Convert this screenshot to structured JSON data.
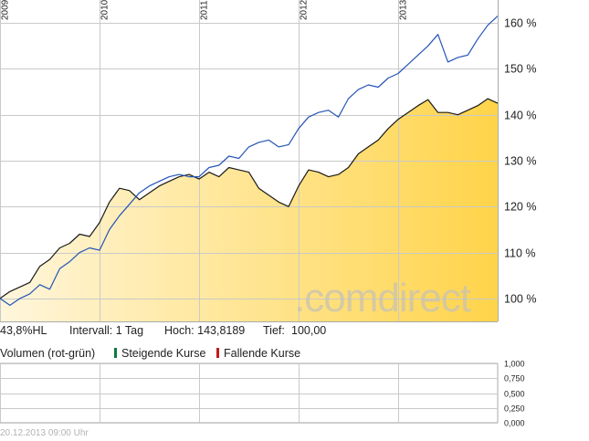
{
  "chart_data": [
    {
      "type": "area",
      "title": "",
      "xlabel": "",
      "ylabel": "",
      "x_axis_labels": [
        "2009",
        "2010",
        "2011",
        "2012",
        "2013"
      ],
      "y_axis_labels": [
        "160 %",
        "150 %",
        "140 %",
        "130 %",
        "120 %",
        "110 %",
        "100 %"
      ],
      "ylim": [
        95,
        165
      ],
      "grid": true,
      "series": [
        {
          "style": "area",
          "color": "#1a1a1a",
          "fill": [
            "#fff6dc",
            "#ffd44a"
          ],
          "x": [
            0.0,
            0.1,
            0.2,
            0.3,
            0.4,
            0.5,
            0.6,
            0.7,
            0.8,
            0.9,
            1.0,
            1.1,
            1.2,
            1.3,
            1.4,
            1.5,
            1.6,
            1.7,
            1.8,
            1.9,
            2.0,
            2.1,
            2.2,
            2.3,
            2.4,
            2.5,
            2.6,
            2.7,
            2.8,
            2.9,
            3.0,
            3.1,
            3.2,
            3.3,
            3.4,
            3.5,
            3.6,
            3.7,
            3.8,
            3.9,
            4.0,
            4.1,
            4.2,
            4.3,
            4.4,
            4.5,
            4.6,
            4.7,
            4.8,
            4.9,
            5.0
          ],
          "values": [
            100,
            101.5,
            102.5,
            103.5,
            107,
            108.5,
            111,
            112,
            114,
            113.5,
            116.5,
            121,
            124,
            123.5,
            121.5,
            123,
            124.5,
            125.5,
            126.5,
            127,
            126,
            127.5,
            126.5,
            128.5,
            128,
            127.5,
            124,
            122.5,
            121,
            120,
            124.5,
            128,
            127.5,
            126.5,
            127,
            128.5,
            131.5,
            133,
            134.5,
            137,
            139,
            140.5,
            142,
            143.3,
            140.5,
            140.5,
            140,
            141,
            142,
            143.5,
            142.5
          ]
        },
        {
          "style": "line",
          "color": "#2454b8",
          "x": [
            0.0,
            0.1,
            0.2,
            0.3,
            0.4,
            0.5,
            0.6,
            0.7,
            0.8,
            0.9,
            1.0,
            1.1,
            1.2,
            1.3,
            1.4,
            1.5,
            1.6,
            1.7,
            1.8,
            1.9,
            2.0,
            2.1,
            2.2,
            2.3,
            2.4,
            2.5,
            2.6,
            2.7,
            2.8,
            2.9,
            3.0,
            3.1,
            3.2,
            3.3,
            3.4,
            3.5,
            3.6,
            3.7,
            3.8,
            3.9,
            4.0,
            4.1,
            4.2,
            4.3,
            4.4,
            4.5,
            4.6,
            4.7,
            4.8,
            4.9,
            5.0
          ],
          "values": [
            100,
            98.5,
            100,
            101,
            103,
            102,
            106.5,
            108,
            110,
            111,
            110.5,
            115,
            118,
            120.5,
            123,
            124.5,
            125.5,
            126.5,
            127,
            126.5,
            126.5,
            128.5,
            129,
            131,
            130.5,
            133,
            134,
            134.5,
            133,
            133.5,
            137,
            139.5,
            140.5,
            141,
            139.5,
            143.5,
            145.5,
            146.5,
            146,
            148,
            149,
            151,
            153,
            155,
            157.5,
            151.5,
            152.5,
            153,
            156.5,
            159.5,
            161.5
          ]
        }
      ]
    },
    {
      "type": "bar",
      "title": "Volumen (rot-grün)",
      "y_axis_labels": [
        "1,000",
        "0,750",
        "0,500",
        "0,250",
        "0,000"
      ],
      "ylim": [
        0,
        1
      ],
      "values": [],
      "grid": true,
      "legend": [
        {
          "label": "Steigende Kurse",
          "color": "#0f7a3c"
        },
        {
          "label": "Fallende Kurse",
          "color": "#c41a1a"
        }
      ]
    }
  ],
  "info": {
    "name": "43,8%HL",
    "interval": "Intervall: 1 Tag",
    "high": "Hoch: 143,8189",
    "low_label": "Tief:",
    "low_value": "100,00"
  },
  "watermark": ".comdirect",
  "timestamp": "20.12.2013 09:00 Uhr"
}
